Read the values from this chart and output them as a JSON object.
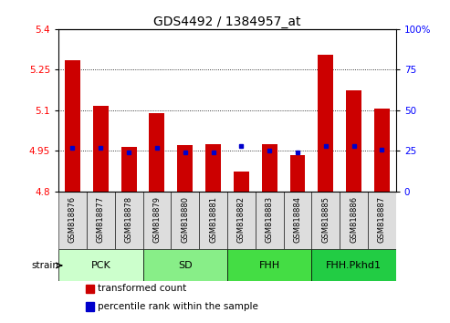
{
  "title": "GDS4492 / 1384957_at",
  "samples": [
    "GSM818876",
    "GSM818877",
    "GSM818878",
    "GSM818879",
    "GSM818880",
    "GSM818881",
    "GSM818882",
    "GSM818883",
    "GSM818884",
    "GSM818885",
    "GSM818886",
    "GSM818887"
  ],
  "transformed_counts": [
    5.285,
    5.115,
    4.965,
    5.09,
    4.97,
    4.975,
    4.875,
    4.975,
    4.935,
    5.305,
    5.175,
    5.105
  ],
  "percentile_ranks_pct": [
    27,
    27,
    24,
    27,
    24,
    24,
    28,
    25,
    24,
    28,
    28,
    26
  ],
  "ylim_left": [
    4.8,
    5.4
  ],
  "ylim_right": [
    0,
    100
  ],
  "yticks_left": [
    4.8,
    4.95,
    5.1,
    5.25,
    5.4
  ],
  "yticks_right": [
    0,
    25,
    50,
    75,
    100
  ],
  "grid_lines": [
    4.95,
    5.1,
    5.25
  ],
  "bar_color": "#cc0000",
  "dot_color": "#0000cc",
  "strain_groups": [
    {
      "label": "PCK",
      "start": 0,
      "end": 3,
      "color": "#ccffcc"
    },
    {
      "label": "SD",
      "start": 3,
      "end": 6,
      "color": "#88ee88"
    },
    {
      "label": "FHH",
      "start": 6,
      "end": 9,
      "color": "#44dd44"
    },
    {
      "label": "FHH.Pkhd1",
      "start": 9,
      "end": 12,
      "color": "#22cc44"
    }
  ],
  "legend_items": [
    {
      "label": "transformed count",
      "color": "#cc0000"
    },
    {
      "label": "percentile rank within the sample",
      "color": "#0000cc"
    }
  ],
  "bar_bottom": 4.8,
  "bar_width": 0.55,
  "tick_fontsize": 7.5,
  "title_fontsize": 10,
  "sample_fontsize": 6,
  "group_fontsize": 8,
  "legend_fontsize": 7.5,
  "ticklabel_gray": "#dddddd"
}
